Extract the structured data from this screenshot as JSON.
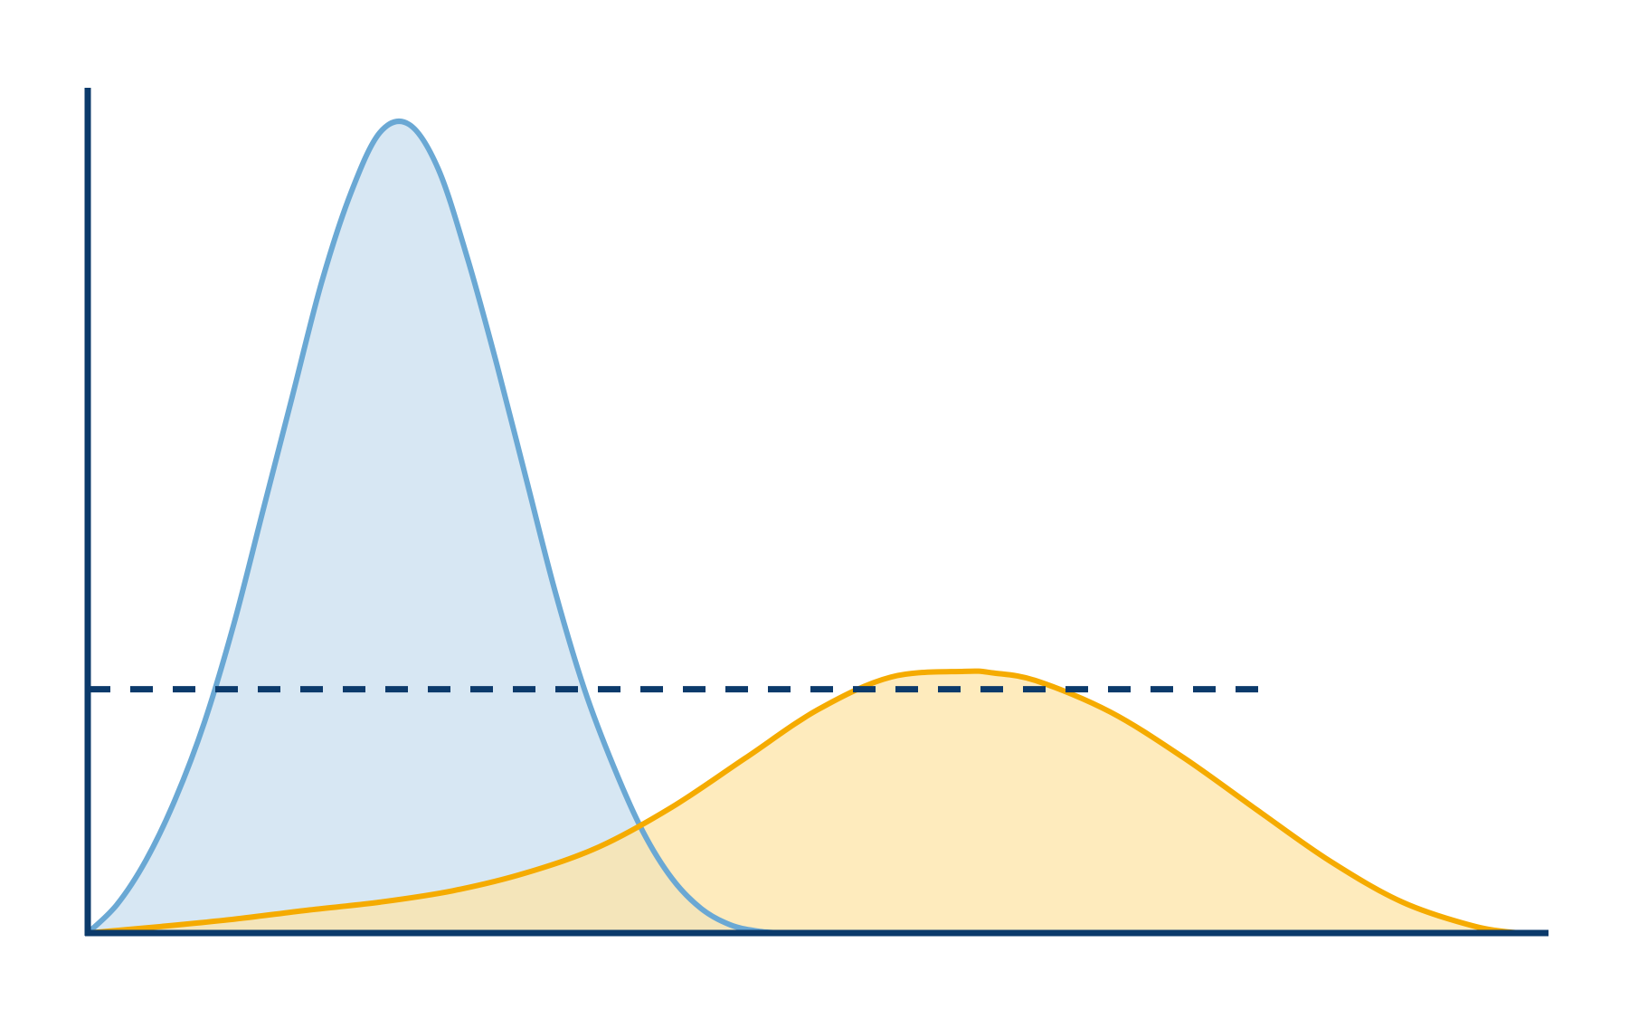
{
  "chart_data": {
    "type": "area",
    "title": "",
    "xlabel": "",
    "ylabel": "",
    "xlim": [
      0,
      100
    ],
    "ylim": [
      0,
      100
    ],
    "grid": false,
    "axis_color": "#0b3a6b",
    "series": [
      {
        "kind": "distribution",
        "stroke": "#6aa8d4",
        "fill": "#c9dfef",
        "x": [
          0,
          2,
          4,
          6,
          8,
          10,
          12,
          14,
          16,
          18,
          20,
          22,
          24,
          26,
          28,
          30,
          32,
          34,
          36,
          38,
          40,
          42,
          44,
          46,
          48,
          50
        ],
        "y": [
          0,
          3.5,
          9,
          16.5,
          26,
          38,
          52,
          66,
          80,
          91,
          98.5,
          99.5,
          94,
          83,
          70,
          56,
          42,
          30,
          20.5,
          12.5,
          6.7,
          3,
          1,
          0.2,
          0,
          0
        ]
      },
      {
        "kind": "distribution",
        "stroke": "#f5ab00",
        "fill": "#fde4a7",
        "x": [
          0,
          5,
          10,
          15,
          20,
          25,
          30,
          35,
          40,
          45,
          50,
          55,
          60,
          62,
          65,
          70,
          75,
          80,
          85,
          90,
          95,
          98
        ],
        "y": [
          0,
          0.8,
          1.7,
          2.8,
          3.8,
          5.2,
          7.4,
          10.6,
          15.5,
          21.5,
          27.5,
          31.5,
          32.2,
          32,
          31,
          27.2,
          21.6,
          15.2,
          8.9,
          3.8,
          0.8,
          0
        ]
      }
    ],
    "reference_lines": [
      {
        "orientation": "horizontal",
        "y": 30,
        "x_start": 0,
        "x_end": 81,
        "style": "dashed",
        "color": "#0b3a6b"
      }
    ]
  }
}
